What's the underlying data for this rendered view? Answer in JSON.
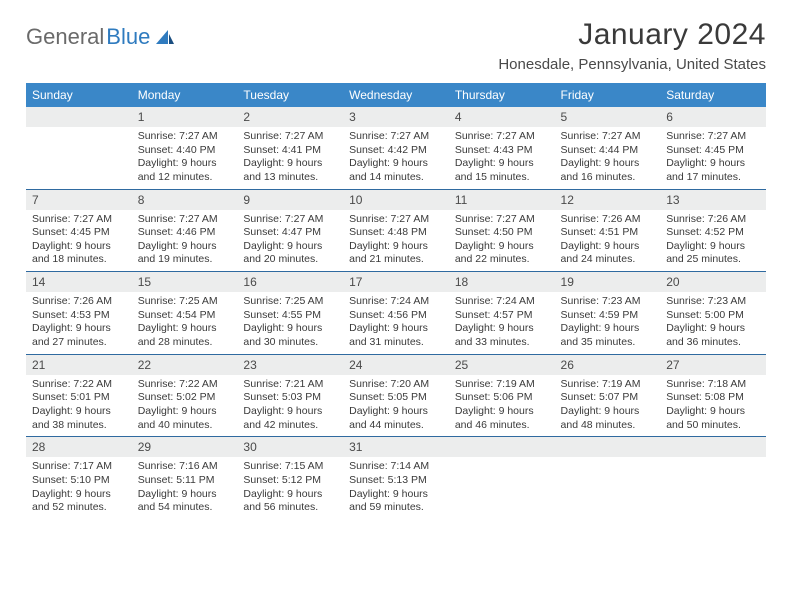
{
  "brand": {
    "word1": "General",
    "word2": "Blue"
  },
  "title": "January 2024",
  "location": "Honesdale, Pennsylvania, United States",
  "header_color": "#3a87c8",
  "daynum_bg": "#eceded",
  "divider_color": "#2f6aa0",
  "day_headers": [
    "Sunday",
    "Monday",
    "Tuesday",
    "Wednesday",
    "Thursday",
    "Friday",
    "Saturday"
  ],
  "weeks": [
    [
      null,
      {
        "n": "1",
        "sr": "7:27 AM",
        "ss": "4:40 PM",
        "dl": "9 hours and 12 minutes."
      },
      {
        "n": "2",
        "sr": "7:27 AM",
        "ss": "4:41 PM",
        "dl": "9 hours and 13 minutes."
      },
      {
        "n": "3",
        "sr": "7:27 AM",
        "ss": "4:42 PM",
        "dl": "9 hours and 14 minutes."
      },
      {
        "n": "4",
        "sr": "7:27 AM",
        "ss": "4:43 PM",
        "dl": "9 hours and 15 minutes."
      },
      {
        "n": "5",
        "sr": "7:27 AM",
        "ss": "4:44 PM",
        "dl": "9 hours and 16 minutes."
      },
      {
        "n": "6",
        "sr": "7:27 AM",
        "ss": "4:45 PM",
        "dl": "9 hours and 17 minutes."
      }
    ],
    [
      {
        "n": "7",
        "sr": "7:27 AM",
        "ss": "4:45 PM",
        "dl": "9 hours and 18 minutes."
      },
      {
        "n": "8",
        "sr": "7:27 AM",
        "ss": "4:46 PM",
        "dl": "9 hours and 19 minutes."
      },
      {
        "n": "9",
        "sr": "7:27 AM",
        "ss": "4:47 PM",
        "dl": "9 hours and 20 minutes."
      },
      {
        "n": "10",
        "sr": "7:27 AM",
        "ss": "4:48 PM",
        "dl": "9 hours and 21 minutes."
      },
      {
        "n": "11",
        "sr": "7:27 AM",
        "ss": "4:50 PM",
        "dl": "9 hours and 22 minutes."
      },
      {
        "n": "12",
        "sr": "7:26 AM",
        "ss": "4:51 PM",
        "dl": "9 hours and 24 minutes."
      },
      {
        "n": "13",
        "sr": "7:26 AM",
        "ss": "4:52 PM",
        "dl": "9 hours and 25 minutes."
      }
    ],
    [
      {
        "n": "14",
        "sr": "7:26 AM",
        "ss": "4:53 PM",
        "dl": "9 hours and 27 minutes."
      },
      {
        "n": "15",
        "sr": "7:25 AM",
        "ss": "4:54 PM",
        "dl": "9 hours and 28 minutes."
      },
      {
        "n": "16",
        "sr": "7:25 AM",
        "ss": "4:55 PM",
        "dl": "9 hours and 30 minutes."
      },
      {
        "n": "17",
        "sr": "7:24 AM",
        "ss": "4:56 PM",
        "dl": "9 hours and 31 minutes."
      },
      {
        "n": "18",
        "sr": "7:24 AM",
        "ss": "4:57 PM",
        "dl": "9 hours and 33 minutes."
      },
      {
        "n": "19",
        "sr": "7:23 AM",
        "ss": "4:59 PM",
        "dl": "9 hours and 35 minutes."
      },
      {
        "n": "20",
        "sr": "7:23 AM",
        "ss": "5:00 PM",
        "dl": "9 hours and 36 minutes."
      }
    ],
    [
      {
        "n": "21",
        "sr": "7:22 AM",
        "ss": "5:01 PM",
        "dl": "9 hours and 38 minutes."
      },
      {
        "n": "22",
        "sr": "7:22 AM",
        "ss": "5:02 PM",
        "dl": "9 hours and 40 minutes."
      },
      {
        "n": "23",
        "sr": "7:21 AM",
        "ss": "5:03 PM",
        "dl": "9 hours and 42 minutes."
      },
      {
        "n": "24",
        "sr": "7:20 AM",
        "ss": "5:05 PM",
        "dl": "9 hours and 44 minutes."
      },
      {
        "n": "25",
        "sr": "7:19 AM",
        "ss": "5:06 PM",
        "dl": "9 hours and 46 minutes."
      },
      {
        "n": "26",
        "sr": "7:19 AM",
        "ss": "5:07 PM",
        "dl": "9 hours and 48 minutes."
      },
      {
        "n": "27",
        "sr": "7:18 AM",
        "ss": "5:08 PM",
        "dl": "9 hours and 50 minutes."
      }
    ],
    [
      {
        "n": "28",
        "sr": "7:17 AM",
        "ss": "5:10 PM",
        "dl": "9 hours and 52 minutes."
      },
      {
        "n": "29",
        "sr": "7:16 AM",
        "ss": "5:11 PM",
        "dl": "9 hours and 54 minutes."
      },
      {
        "n": "30",
        "sr": "7:15 AM",
        "ss": "5:12 PM",
        "dl": "9 hours and 56 minutes."
      },
      {
        "n": "31",
        "sr": "7:14 AM",
        "ss": "5:13 PM",
        "dl": "9 hours and 59 minutes."
      },
      null,
      null,
      null
    ]
  ],
  "labels": {
    "sunrise": "Sunrise:",
    "sunset": "Sunset:",
    "daylight": "Daylight:"
  }
}
